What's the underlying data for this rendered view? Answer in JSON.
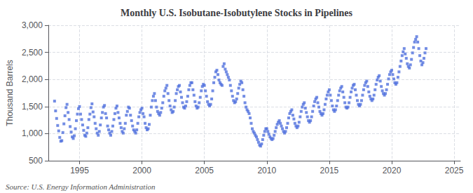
{
  "chart_data": {
    "type": "scatter",
    "title": "Monthly U.S. Isobutane-Isobutylene Stocks in Pipelines",
    "ylabel": "Thousand Barrels",
    "annotations": [
      "Source: U.S. Energy Information Administration"
    ],
    "marker": "square",
    "grid": true,
    "xlim": [
      1992.5,
      2025.5
    ],
    "xticks": [
      1995,
      2000,
      2005,
      2010,
      2015,
      2020,
      2025
    ],
    "ylim": [
      500,
      3000
    ],
    "yticks": [
      500,
      {
        "value": 1000,
        "label": "1,000"
      },
      {
        "value": 1500,
        "label": "1,500"
      },
      {
        "value": 2000,
        "label": "2,000"
      },
      {
        "value": 2500,
        "label": "2,500"
      },
      {
        "value": 3000,
        "label": "3,000"
      }
    ],
    "x": [
      1993.0,
      1993.083,
      1993.167,
      1993.25,
      1993.333,
      1993.417,
      1993.5,
      1993.583,
      1993.667,
      1993.75,
      1993.833,
      1993.917,
      1994.0,
      1994.083,
      1994.167,
      1994.25,
      1994.333,
      1994.417,
      1994.5,
      1994.583,
      1994.667,
      1994.75,
      1994.833,
      1994.917,
      1995.0,
      1995.083,
      1995.167,
      1995.25,
      1995.333,
      1995.417,
      1995.5,
      1995.583,
      1995.667,
      1995.75,
      1995.833,
      1995.917,
      1996.0,
      1996.083,
      1996.167,
      1996.25,
      1996.333,
      1996.417,
      1996.5,
      1996.583,
      1996.667,
      1996.75,
      1996.833,
      1996.917,
      1997.0,
      1997.083,
      1997.167,
      1997.25,
      1997.333,
      1997.417,
      1997.5,
      1997.583,
      1997.667,
      1997.75,
      1997.833,
      1997.917,
      1998.0,
      1998.083,
      1998.167,
      1998.25,
      1998.333,
      1998.417,
      1998.5,
      1998.583,
      1998.667,
      1998.75,
      1998.833,
      1998.917,
      1999.0,
      1999.083,
      1999.167,
      1999.25,
      1999.333,
      1999.417,
      1999.5,
      1999.583,
      1999.667,
      1999.75,
      1999.833,
      1999.917,
      2000.0,
      2000.083,
      2000.167,
      2000.25,
      2000.333,
      2000.417,
      2000.5,
      2000.583,
      2000.667,
      2000.75,
      2000.833,
      2000.917,
      2001.0,
      2001.083,
      2001.167,
      2001.25,
      2001.333,
      2001.417,
      2001.5,
      2001.583,
      2001.667,
      2001.75,
      2001.833,
      2001.917,
      2002.0,
      2002.083,
      2002.167,
      2002.25,
      2002.333,
      2002.417,
      2002.5,
      2002.583,
      2002.667,
      2002.75,
      2002.833,
      2002.917,
      2003.0,
      2003.083,
      2003.167,
      2003.25,
      2003.333,
      2003.417,
      2003.5,
      2003.583,
      2003.667,
      2003.75,
      2003.833,
      2003.917,
      2004.0,
      2004.083,
      2004.167,
      2004.25,
      2004.333,
      2004.417,
      2004.5,
      2004.583,
      2004.667,
      2004.75,
      2004.833,
      2004.917,
      2005.0,
      2005.083,
      2005.167,
      2005.25,
      2005.333,
      2005.417,
      2005.5,
      2005.583,
      2005.667,
      2005.75,
      2005.833,
      2005.917,
      2006.0,
      2006.083,
      2006.167,
      2006.25,
      2006.333,
      2006.417,
      2006.5,
      2006.583,
      2006.667,
      2006.75,
      2006.833,
      2006.917,
      2007.0,
      2007.083,
      2007.167,
      2007.25,
      2007.333,
      2007.417,
      2007.5,
      2007.583,
      2007.667,
      2007.75,
      2007.833,
      2007.917,
      2008.0,
      2008.083,
      2008.167,
      2008.25,
      2008.333,
      2008.417,
      2008.5,
      2008.583,
      2008.667,
      2008.75,
      2008.833,
      2008.917,
      2009.0,
      2009.083,
      2009.167,
      2009.25,
      2009.333,
      2009.417,
      2009.5,
      2009.583,
      2009.667,
      2009.75,
      2009.833,
      2009.917,
      2010.0,
      2010.083,
      2010.167,
      2010.25,
      2010.333,
      2010.417,
      2010.5,
      2010.583,
      2010.667,
      2010.75,
      2010.833,
      2010.917,
      2011.0,
      2011.083,
      2011.167,
      2011.25,
      2011.333,
      2011.417,
      2011.5,
      2011.583,
      2011.667,
      2011.75,
      2011.833,
      2011.917,
      2012.0,
      2012.083,
      2012.167,
      2012.25,
      2012.333,
      2012.417,
      2012.5,
      2012.583,
      2012.667,
      2012.75,
      2012.833,
      2012.917,
      2013.0,
      2013.083,
      2013.167,
      2013.25,
      2013.333,
      2013.417,
      2013.5,
      2013.583,
      2013.667,
      2013.75,
      2013.833,
      2013.917,
      2014.0,
      2014.083,
      2014.167,
      2014.25,
      2014.333,
      2014.417,
      2014.5,
      2014.583,
      2014.667,
      2014.75,
      2014.833,
      2014.917,
      2015.0,
      2015.083,
      2015.167,
      2015.25,
      2015.333,
      2015.417,
      2015.5,
      2015.583,
      2015.667,
      2015.75,
      2015.833,
      2015.917,
      2016.0,
      2016.083,
      2016.167,
      2016.25,
      2016.333,
      2016.417,
      2016.5,
      2016.583,
      2016.667,
      2016.75,
      2016.833,
      2016.917,
      2017.0,
      2017.083,
      2017.167,
      2017.25,
      2017.333,
      2017.417,
      2017.5,
      2017.583,
      2017.667,
      2017.75,
      2017.833,
      2017.917,
      2018.0,
      2018.083,
      2018.167,
      2018.25,
      2018.333,
      2018.417,
      2018.5,
      2018.583,
      2018.667,
      2018.75,
      2018.833,
      2018.917,
      2019.0,
      2019.083,
      2019.167,
      2019.25,
      2019.333,
      2019.417,
      2019.5,
      2019.583,
      2019.667,
      2019.75,
      2019.833,
      2019.917,
      2020.0,
      2020.083,
      2020.167,
      2020.25,
      2020.333,
      2020.417,
      2020.5,
      2020.583,
      2020.667,
      2020.75,
      2020.833,
      2020.917,
      2021.0,
      2021.083,
      2021.167,
      2021.25,
      2021.333,
      2021.417,
      2021.5,
      2021.583,
      2021.667,
      2021.75,
      2021.833,
      2021.917,
      2022.0,
      2022.083,
      2022.167,
      2022.25,
      2022.333,
      2022.417,
      2022.5,
      2022.583,
      2022.667,
      2022.75
    ],
    "values": [
      1600,
      1420,
      1280,
      1150,
      1050,
      930,
      860,
      870,
      1020,
      1180,
      1330,
      1480,
      1540,
      1390,
      1260,
      1130,
      1030,
      940,
      910,
      960,
      1090,
      1240,
      1360,
      1460,
      1500,
      1360,
      1260,
      1160,
      1060,
      970,
      950,
      1010,
      1110,
      1260,
      1360,
      1480,
      1550,
      1400,
      1310,
      1190,
      1090,
      1010,
      970,
      1040,
      1160,
      1290,
      1390,
      1490,
      1520,
      1370,
      1290,
      1140,
      1070,
      1010,
      970,
      1040,
      1140,
      1260,
      1370,
      1470,
      1510,
      1390,
      1290,
      1190,
      1110,
      1040,
      1010,
      1090,
      1190,
      1340,
      1410,
      1490,
      1470,
      1340,
      1240,
      1140,
      1070,
      1040,
      1010,
      1070,
      1190,
      1310,
      1390,
      1440,
      1470,
      1370,
      1310,
      1190,
      1110,
      1070,
      1090,
      1170,
      1340,
      1490,
      1610,
      1690,
      1740,
      1610,
      1490,
      1410,
      1370,
      1340,
      1390,
      1470,
      1570,
      1690,
      1790,
      1840,
      1890,
      1740,
      1610,
      1510,
      1440,
      1390,
      1410,
      1490,
      1610,
      1740,
      1810,
      1870,
      1890,
      1770,
      1670,
      1570,
      1490,
      1470,
      1510,
      1590,
      1690,
      1810,
      1890,
      1940,
      1940,
      1810,
      1710,
      1590,
      1510,
      1470,
      1490,
      1570,
      1670,
      1790,
      1870,
      1910,
      1890,
      1790,
      1690,
      1590,
      1540,
      1510,
      1540,
      1640,
      1790,
      1940,
      2040,
      2140,
      2170,
      2090,
      1990,
      1940,
      1910,
      1890,
      2240,
      2290,
      2190,
      2140,
      2090,
      2040,
      1990,
      1890,
      1790,
      1690,
      1610,
      1570,
      1590,
      1640,
      1740,
      1840,
      1910,
      1970,
      1940,
      1810,
      1690,
      1570,
      1490,
      1440,
      1410,
      1370,
      1290,
      1190,
      1090,
      1040,
      1010,
      970,
      940,
      890,
      840,
      790,
      770,
      810,
      890,
      970,
      1040,
      1090,
      1090,
      1040,
      990,
      940,
      910,
      890,
      910,
      970,
      1040,
      1110,
      1170,
      1210,
      1240,
      1190,
      1140,
      1090,
      1040,
      1010,
      1040,
      1110,
      1190,
      1290,
      1370,
      1410,
      1440,
      1340,
      1270,
      1190,
      1140,
      1110,
      1140,
      1210,
      1310,
      1410,
      1490,
      1540,
      1570,
      1470,
      1390,
      1310,
      1240,
      1210,
      1240,
      1310,
      1410,
      1510,
      1590,
      1640,
      1670,
      1570,
      1490,
      1410,
      1370,
      1340,
      1370,
      1440,
      1540,
      1640,
      1710,
      1770,
      1810,
      1710,
      1610,
      1510,
      1440,
      1410,
      1440,
      1510,
      1610,
      1710,
      1790,
      1840,
      1870,
      1770,
      1670,
      1570,
      1490,
      1470,
      1490,
      1570,
      1670,
      1770,
      1840,
      1890,
      1910,
      1810,
      1710,
      1610,
      1540,
      1510,
      1540,
      1610,
      1710,
      1810,
      1890,
      1940,
      1970,
      1870,
      1770,
      1690,
      1640,
      1610,
      1640,
      1710,
      1810,
      1910,
      1990,
      2040,
      2070,
      1970,
      1870,
      1790,
      1740,
      1710,
      1740,
      1810,
      1910,
      2010,
      2090,
      2140,
      2170,
      2090,
      2010,
      1940,
      1910,
      1940,
      2040,
      2140,
      2240,
      2340,
      2440,
      2510,
      2570,
      2470,
      2390,
      2290,
      2240,
      2210,
      2270,
      2370,
      2490,
      2590,
      2690,
      2740,
      2790,
      2690,
      2570,
      2440,
      2340,
      2270,
      2310,
      2390,
      2490,
      2570
    ]
  }
}
